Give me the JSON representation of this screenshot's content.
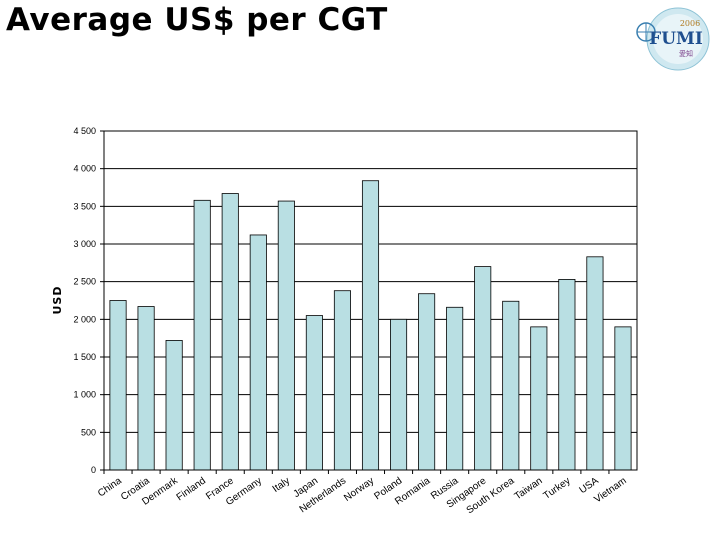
{
  "slide": {
    "title": "Average US$ per CGT"
  },
  "logo": {
    "year": "2006",
    "name": "FUMI",
    "subtitle": "愛知"
  },
  "chart_data": {
    "type": "bar",
    "title": "Average US$ per CGT",
    "xlabel": "",
    "ylabel": "USD",
    "ylim": [
      0,
      4500
    ],
    "yticks": [
      0,
      500,
      1000,
      1500,
      2000,
      2500,
      3000,
      3500,
      4000,
      4500
    ],
    "ytick_labels": [
      "0",
      "500",
      "1 000",
      "1 500",
      "2 000",
      "2 500",
      "3 000",
      "3 500",
      "4 000",
      "4 500"
    ],
    "grid": true,
    "bar_color": "#b9dfe3",
    "categories": [
      "China",
      "Croatia",
      "Denmark",
      "Finland",
      "France",
      "Germany",
      "Italy",
      "Japan",
      "Netherlands",
      "Norway",
      "Poland",
      "Romania",
      "Russia",
      "Singapore",
      "South Korea",
      "Taiwan",
      "Turkey",
      "USA",
      "Vietnam"
    ],
    "values": [
      2250,
      2170,
      1720,
      3580,
      3670,
      3120,
      3570,
      2050,
      2380,
      3840,
      2000,
      2340,
      2160,
      2700,
      2240,
      1900,
      2530,
      2830,
      1900
    ]
  }
}
